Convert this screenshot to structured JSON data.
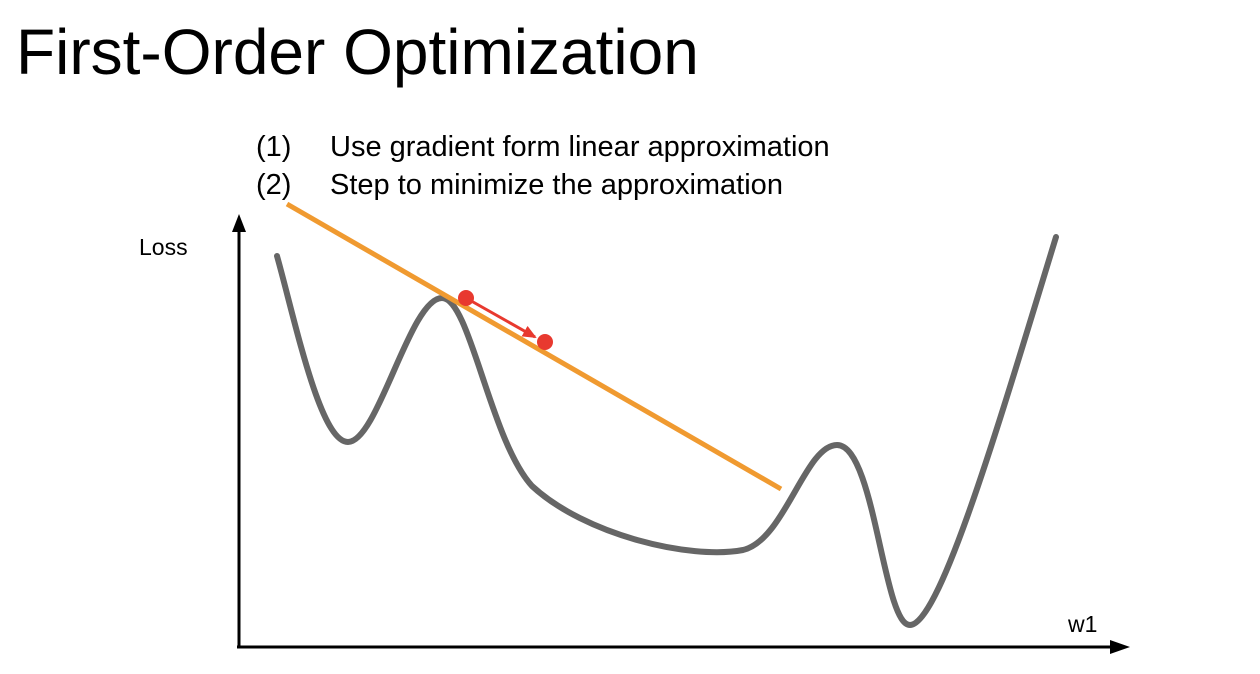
{
  "title": "First-Order Optimization",
  "steps": [
    {
      "number": "(1)",
      "text": "Use gradient form linear approximation"
    },
    {
      "number": "(2)",
      "text": "Step to minimize the approximation"
    }
  ],
  "axes": {
    "y_label": "Loss",
    "x_label": "w1"
  },
  "colors": {
    "loss_curve": "#666666",
    "linear_approximation": "#F09A30",
    "gradient_step": "#E8392F",
    "axes": "#000000"
  }
}
